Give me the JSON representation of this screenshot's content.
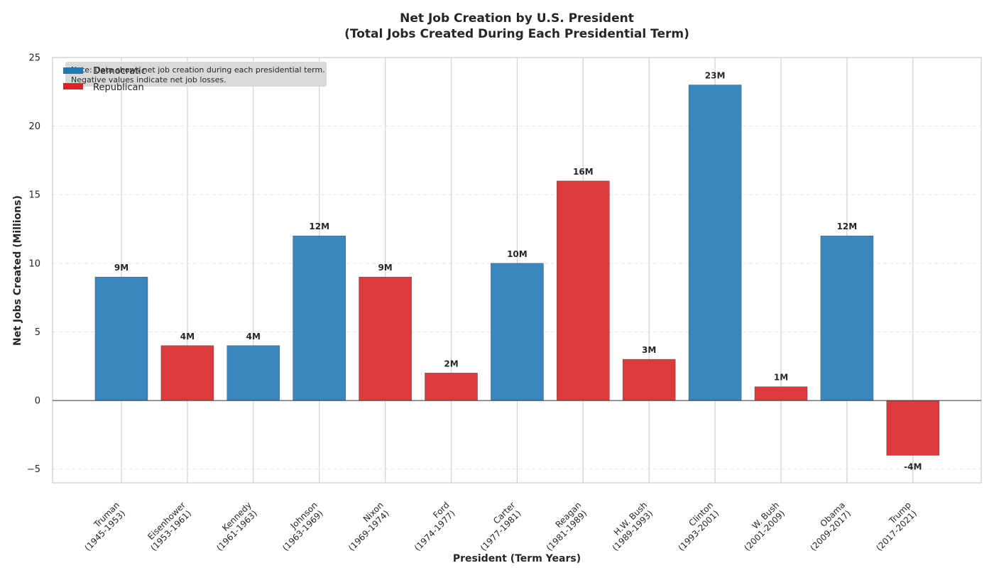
{
  "chart_data": {
    "type": "bar",
    "title": "Net Job Creation by U.S. President",
    "subtitle": "(Total Jobs Created During Each Presidential Term)",
    "xlabel": "President (Term Years)",
    "ylabel": "Net Jobs Created (Millions)",
    "ylim": [
      -6,
      25
    ],
    "yticks": [
      -5,
      0,
      5,
      10,
      15,
      20,
      25
    ],
    "ytick_labels": [
      "−5",
      "0",
      "5",
      "10",
      "15",
      "20",
      "25"
    ],
    "grid": true,
    "legend_position": "top-left",
    "categories": [
      [
        "Truman",
        "(1945-1953)"
      ],
      [
        "Eisenhower",
        "(1953-1961)"
      ],
      [
        "Kennedy",
        "(1961-1963)"
      ],
      [
        "Johnson",
        "(1963-1969)"
      ],
      [
        "Nixon",
        "(1969-1974)"
      ],
      [
        "Ford",
        "(1974-1977)"
      ],
      [
        "Carter",
        "(1977-1981)"
      ],
      [
        "Reagan",
        "(1981-1989)"
      ],
      [
        "H.W. Bush",
        "(1989-1993)"
      ],
      [
        "Clinton",
        "(1993-2001)"
      ],
      [
        "W. Bush",
        "(2001-2009)"
      ],
      [
        "Obama",
        "(2009-2017)"
      ],
      [
        "Trump",
        "(2017-2021)"
      ]
    ],
    "values": [
      9,
      4,
      4,
      12,
      9,
      2,
      10,
      16,
      3,
      23,
      1,
      12,
      -4
    ],
    "value_labels": [
      "9M",
      "4M",
      "4M",
      "12M",
      "9M",
      "2M",
      "10M",
      "16M",
      "3M",
      "23M",
      "1M",
      "12M",
      "-4M"
    ],
    "party": [
      "Democratic",
      "Republican",
      "Democratic",
      "Democratic",
      "Republican",
      "Republican",
      "Democratic",
      "Republican",
      "Republican",
      "Democratic",
      "Republican",
      "Democratic",
      "Republican"
    ],
    "legend": [
      {
        "name": "Democratic",
        "color": "#1f77b4"
      },
      {
        "name": "Republican",
        "color": "#d62728"
      }
    ],
    "annotation": [
      "Note: Data shows net job creation during each presidential term.",
      "Negative values indicate net job losses."
    ]
  },
  "colors": {
    "Democratic": "#3a87c0",
    "Republican": "#dc3b3e",
    "Democratic_legend": "#1f77b4",
    "Republican_legend": "#d62728"
  }
}
